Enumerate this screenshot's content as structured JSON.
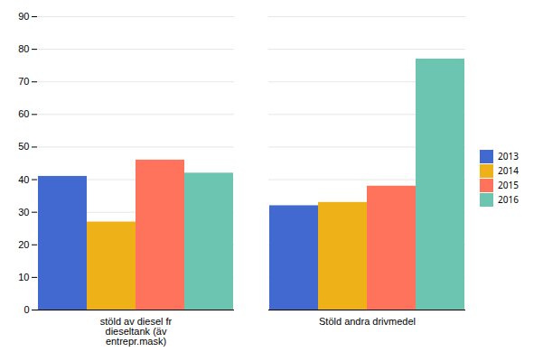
{
  "chart_data": {
    "type": "bar",
    "categories": [
      "stöld av diesel fr\ndieseltank (äv\nentrepr.mask)",
      "Stöld andra drivmedel"
    ],
    "series": [
      {
        "name": "2013",
        "values": [
          41,
          32
        ]
      },
      {
        "name": "2014",
        "values": [
          27,
          33
        ]
      },
      {
        "name": "2015",
        "values": [
          46,
          38
        ]
      },
      {
        "name": "2016",
        "values": [
          42,
          77
        ]
      }
    ],
    "ylim": [
      0,
      90
    ],
    "yticks": [
      0,
      10,
      20,
      30,
      40,
      50,
      60,
      70,
      80,
      90
    ],
    "grid": true,
    "legend": "right"
  }
}
